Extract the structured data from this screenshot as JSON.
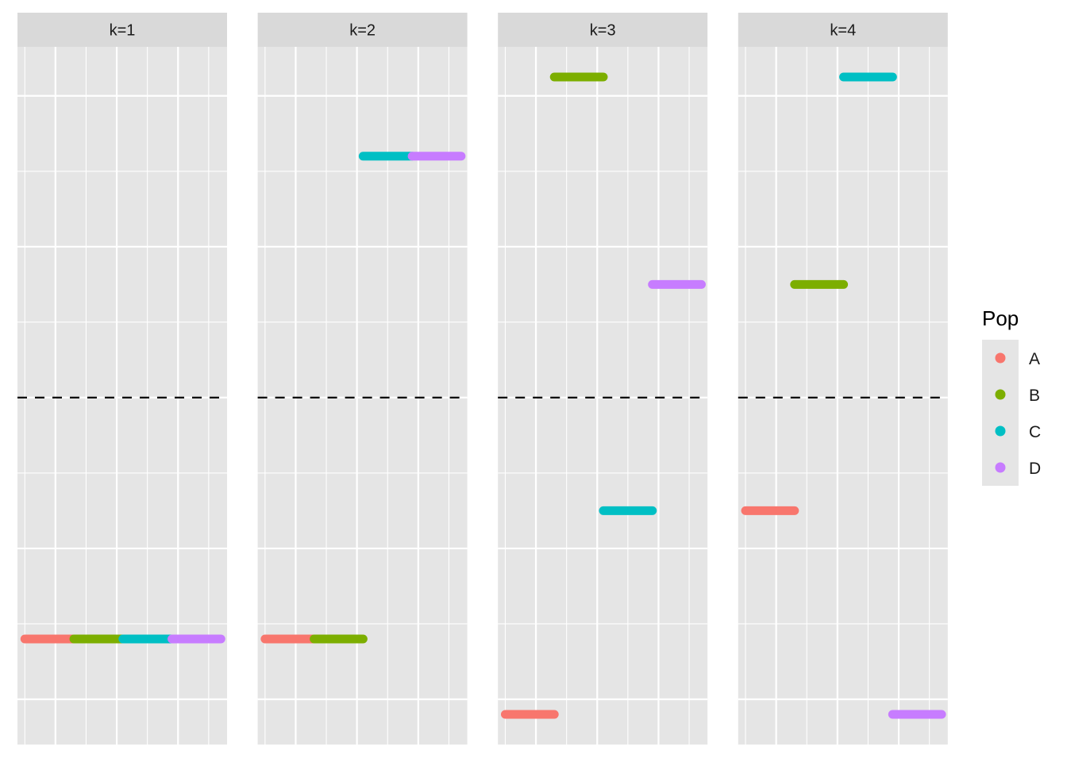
{
  "chart_data": {
    "type": "segment",
    "facet_by": "k",
    "facets": [
      {
        "label": "k=1",
        "segments": [
          {
            "pop": "A",
            "x": [
              0.0,
              0.8
            ],
            "y": -3.2
          },
          {
            "pop": "B",
            "x": [
              0.8,
              1.6
            ],
            "y": -3.2
          },
          {
            "pop": "C",
            "x": [
              1.6,
              2.4
            ],
            "y": -3.2
          },
          {
            "pop": "D",
            "x": [
              2.4,
              3.2
            ],
            "y": -3.2
          }
        ]
      },
      {
        "label": "k=2",
        "segments": [
          {
            "pop": "A",
            "x": [
              0.0,
              0.8
            ],
            "y": -3.2
          },
          {
            "pop": "B",
            "x": [
              0.8,
              1.6
            ],
            "y": -3.2
          },
          {
            "pop": "C",
            "x": [
              1.6,
              2.4
            ],
            "y": 3.2
          },
          {
            "pop": "D",
            "x": [
              2.4,
              3.2
            ],
            "y": 3.2
          }
        ]
      },
      {
        "label": "k=3",
        "segments": [
          {
            "pop": "A",
            "x": [
              0.0,
              0.8
            ],
            "y": -4.2
          },
          {
            "pop": "B",
            "x": [
              0.8,
              1.6
            ],
            "y": 4.25
          },
          {
            "pop": "C",
            "x": [
              1.6,
              2.4
            ],
            "y": -1.5
          },
          {
            "pop": "D",
            "x": [
              2.4,
              3.2
            ],
            "y": 1.5
          }
        ]
      },
      {
        "label": "k=4",
        "segments": [
          {
            "pop": "A",
            "x": [
              0.0,
              0.8
            ],
            "y": -1.5
          },
          {
            "pop": "B",
            "x": [
              0.8,
              1.6
            ],
            "y": 1.5
          },
          {
            "pop": "C",
            "x": [
              1.6,
              2.4
            ],
            "y": 4.25
          },
          {
            "pop": "D",
            "x": [
              2.4,
              3.2
            ],
            "y": -4.2
          }
        ]
      }
    ],
    "reference_line": {
      "y": 0,
      "style": "dashed"
    },
    "xlim": [
      -0.12,
      3.3
    ],
    "ylim": [
      -4.6,
      4.65
    ],
    "x_major_breaks": [
      0.5,
      1.5,
      2.5
    ],
    "x_minor_breaks": [
      0,
      1,
      2,
      3
    ],
    "y_major_breaks": [
      -4,
      -2,
      0,
      2,
      4
    ],
    "y_minor_breaks": [
      -3,
      -1,
      1,
      3
    ],
    "title": "",
    "xlabel": "",
    "ylabel": "",
    "legend": {
      "title": "Pop",
      "placement": "right",
      "entries": [
        {
          "label": "A",
          "color": "#F8766D"
        },
        {
          "label": "B",
          "color": "#7CAE00"
        },
        {
          "label": "C",
          "color": "#00BFC4"
        },
        {
          "label": "D",
          "color": "#C77CFF"
        }
      ]
    }
  }
}
